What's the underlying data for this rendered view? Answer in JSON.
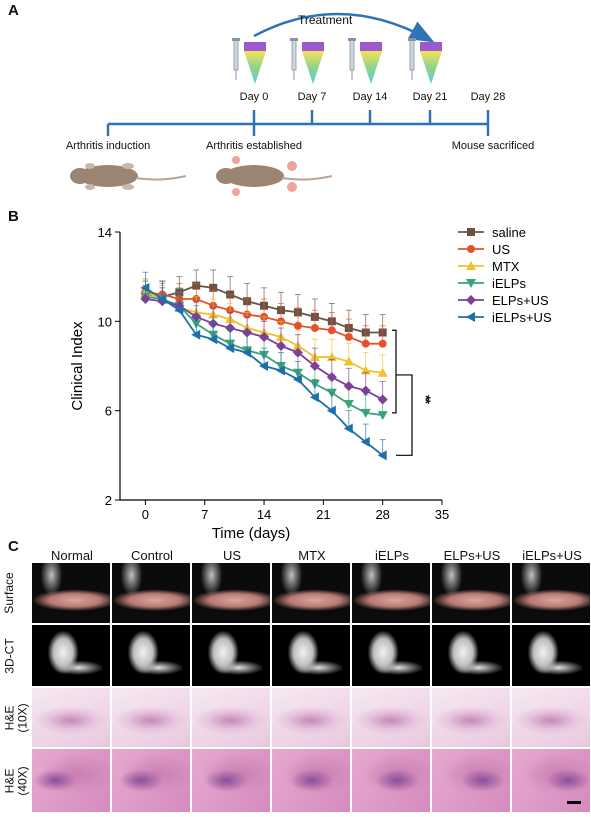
{
  "panel_a": {
    "letter": "A",
    "treatment_label": "Treatment",
    "days": [
      "Day 0",
      "Day 7",
      "Day 14",
      "Day 21",
      "Day 28"
    ],
    "stages": [
      "Arthritis induction",
      "Arthritis established",
      "Mouse sacrificed"
    ],
    "colors": {
      "timeline": "#2e74b5",
      "syringe_fill": "#9b59d0"
    }
  },
  "panel_b": {
    "letter": "B",
    "significance": "**"
  },
  "chart_data": {
    "type": "line",
    "xlabel": "Time (days)",
    "ylabel": "Clinical Index",
    "xlim": [
      -3,
      35
    ],
    "ylim": [
      2,
      14
    ],
    "xticks": [
      0,
      7,
      14,
      21,
      28,
      35
    ],
    "yticks": [
      2,
      6,
      10,
      14
    ],
    "grid": false,
    "legend_position": "top-right",
    "x": [
      0,
      2,
      4,
      6,
      8,
      10,
      12,
      14,
      16,
      18,
      20,
      22,
      24,
      26,
      28
    ],
    "series": [
      {
        "name": "saline",
        "color": "#6b5344",
        "marker": "square",
        "values": [
          11.2,
          11.1,
          11.3,
          11.6,
          11.5,
          11.2,
          10.9,
          10.7,
          10.5,
          10.4,
          10.2,
          10.0,
          9.7,
          9.5,
          9.5
        ],
        "errors": [
          0.6,
          0.7,
          0.7,
          0.7,
          0.8,
          0.8,
          0.8,
          0.8,
          0.8,
          0.8,
          0.8,
          0.8,
          0.8,
          0.8,
          0.8
        ]
      },
      {
        "name": "US",
        "color": "#e2532b",
        "marker": "circle",
        "values": [
          11.3,
          11.2,
          11.0,
          11.0,
          10.7,
          10.5,
          10.3,
          10.2,
          10.0,
          9.8,
          9.7,
          9.6,
          9.3,
          9.0,
          9.0
        ],
        "errors": [
          0.6,
          0.6,
          0.7,
          0.7,
          0.7,
          0.7,
          0.7,
          0.8,
          0.8,
          0.8,
          0.8,
          0.8,
          0.8,
          0.8,
          0.8
        ]
      },
      {
        "name": "MTX",
        "color": "#f2c12e",
        "marker": "triangle-up",
        "values": [
          11.3,
          11.0,
          10.6,
          10.4,
          10.3,
          10.1,
          9.7,
          9.5,
          9.3,
          8.9,
          8.4,
          8.4,
          8.2,
          7.8,
          7.7
        ],
        "errors": [
          0.6,
          0.6,
          0.7,
          0.7,
          0.7,
          0.7,
          0.7,
          0.7,
          0.7,
          0.7,
          0.8,
          0.8,
          0.8,
          0.8,
          0.8
        ]
      },
      {
        "name": "iELPs",
        "color": "#3aa37a",
        "marker": "triangle-down",
        "values": [
          11.1,
          11.0,
          10.7,
          9.9,
          9.4,
          9.0,
          8.7,
          8.5,
          8.0,
          7.7,
          7.2,
          6.8,
          6.3,
          5.9,
          5.8
        ],
        "errors": [
          0.7,
          0.7,
          0.8,
          0.8,
          0.8,
          0.8,
          0.8,
          0.8,
          0.8,
          0.8,
          0.8,
          0.8,
          0.8,
          0.8,
          0.8
        ]
      },
      {
        "name": "ELPs+US",
        "color": "#7e3f98",
        "marker": "diamond",
        "values": [
          11.0,
          10.9,
          10.7,
          10.2,
          9.9,
          9.7,
          9.5,
          9.3,
          8.9,
          8.6,
          8.0,
          7.5,
          7.1,
          6.9,
          6.5
        ],
        "errors": [
          0.6,
          0.6,
          0.7,
          0.7,
          0.7,
          0.7,
          0.7,
          0.7,
          0.8,
          0.8,
          0.8,
          0.8,
          0.8,
          0.8,
          0.8
        ]
      },
      {
        "name": "iELPs+US",
        "color": "#1f6fa8",
        "marker": "triangle-left",
        "values": [
          11.5,
          11.0,
          10.5,
          9.4,
          9.2,
          8.8,
          8.6,
          8.0,
          7.8,
          7.4,
          6.6,
          6.0,
          5.2,
          4.6,
          4.0
        ],
        "errors": [
          0.7,
          0.8,
          0.8,
          0.9,
          0.8,
          0.8,
          0.8,
          0.8,
          0.8,
          0.8,
          0.8,
          0.8,
          0.8,
          0.8,
          0.7
        ]
      }
    ]
  },
  "panel_c": {
    "letter": "C",
    "columns": [
      "Normal",
      "Control",
      "US",
      "MTX",
      "iELPs",
      "ELPs+US",
      "iELPs+US"
    ],
    "rows": [
      "Surface",
      "3D-CT",
      "H&E\n(10X)",
      "H&E\n(40X)"
    ]
  }
}
